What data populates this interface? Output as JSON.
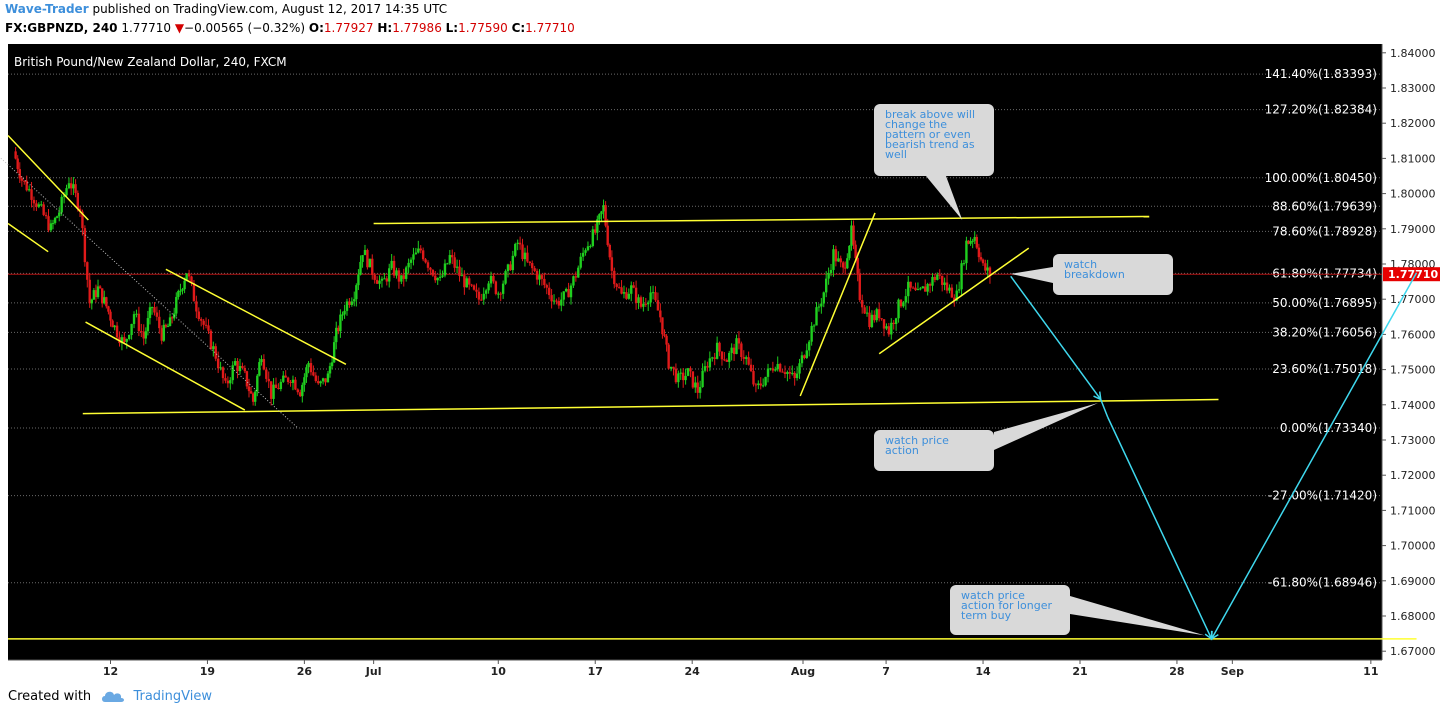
{
  "header": {
    "author": "Wave-Trader",
    "published_text": "published on TradingView.com, August 12, 2017 14:35 UTC",
    "symbol_line": "FX:GBPNZD, 240",
    "last_price": "1.77710",
    "change_arrow": "▼",
    "change": "−0.00565 (−0.32%)",
    "o_label": "O:",
    "o_value": "1.77927",
    "h_label": "H:",
    "h_value": "1.77986",
    "l_label": "L:",
    "l_value": "1.77590",
    "c_label": "C:",
    "c_value": "1.77710"
  },
  "footer": {
    "created_with": "Created with",
    "brand": "TradingView"
  },
  "colors": {
    "background": "#000000",
    "up_candle": "#1fcf1f",
    "down_candle": "#e01a1a",
    "trendline": "#ffff33",
    "projection": "#3fd8ee",
    "price_badge": "#e60000",
    "author": "#3d8fdb"
  },
  "chart_data": {
    "type": "candlestick",
    "title": "British Pound/New Zealand Dollar, 240, FXCM",
    "ylim": [
      1.6675,
      1.8425
    ],
    "yticks": [
      "1.84000",
      "1.83000",
      "1.82000",
      "1.81000",
      "1.80000",
      "1.79000",
      "1.78000",
      "1.77000",
      "1.76000",
      "1.75000",
      "1.74000",
      "1.73000",
      "1.72000",
      "1.71000",
      "1.70000",
      "1.69000",
      "1.68000",
      "1.67000"
    ],
    "xticks": [
      "12",
      "19",
      "26",
      "Jul",
      "10",
      "17",
      "24",
      "Aug",
      "7",
      "14",
      "21",
      "28",
      "Sep",
      "11"
    ],
    "xtick_days": [
      12,
      19,
      26,
      31,
      40,
      47,
      54,
      62,
      68,
      75,
      82,
      89,
      93,
      103
    ],
    "current_price": 1.7771,
    "current_price_label": "1.77710",
    "fib_levels": [
      {
        "label": "141.40%(1.83393)",
        "price": 1.83393
      },
      {
        "label": "127.20%(1.82384)",
        "price": 1.82384
      },
      {
        "label": "100.00%(1.80450)",
        "price": 1.8045
      },
      {
        "label": "88.60%(1.79639)",
        "price": 1.79639
      },
      {
        "label": "78.60%(1.78928)",
        "price": 1.78928
      },
      {
        "label": "61.80%(1.77734)",
        "price": 1.77734
      },
      {
        "label": "50.00%(1.76895)",
        "price": 1.76895
      },
      {
        "label": "38.20%(1.76056)",
        "price": 1.76056
      },
      {
        "label": "23.60%(1.75018)",
        "price": 1.75018
      },
      {
        "label": "0.00%(1.73340)",
        "price": 1.7334
      },
      {
        "label": "-27.00%(1.71420)",
        "price": 1.7142
      },
      {
        "label": "-61.80%(1.68946)",
        "price": 1.68946
      }
    ],
    "price_path": [
      [
        5.0,
        1.812
      ],
      [
        5.6,
        1.804
      ],
      [
        6.3,
        1.8
      ],
      [
        7.0,
        1.795
      ],
      [
        7.7,
        1.79
      ],
      [
        8.3,
        1.795
      ],
      [
        9.0,
        1.804
      ],
      [
        9.8,
        1.796
      ],
      [
        10.5,
        1.769
      ],
      [
        11.1,
        1.773
      ],
      [
        11.7,
        1.768
      ],
      [
        12.3,
        1.762
      ],
      [
        13.0,
        1.757
      ],
      [
        13.7,
        1.766
      ],
      [
        14.4,
        1.759
      ],
      [
        15.0,
        1.768
      ],
      [
        15.7,
        1.76
      ],
      [
        16.3,
        1.763
      ],
      [
        16.9,
        1.771
      ],
      [
        17.5,
        1.778
      ],
      [
        18.2,
        1.768
      ],
      [
        18.9,
        1.761
      ],
      [
        19.6,
        1.754
      ],
      [
        20.3,
        1.745
      ],
      [
        21.0,
        1.752
      ],
      [
        21.7,
        1.748
      ],
      [
        22.3,
        1.741
      ],
      [
        22.9,
        1.755
      ],
      [
        23.6,
        1.743
      ],
      [
        24.3,
        1.746
      ],
      [
        25.0,
        1.748
      ],
      [
        25.7,
        1.744
      ],
      [
        26.3,
        1.752
      ],
      [
        27.0,
        1.745
      ],
      [
        27.7,
        1.748
      ],
      [
        28.3,
        1.76
      ],
      [
        28.9,
        1.768
      ],
      [
        29.6,
        1.772
      ],
      [
        30.2,
        1.784
      ],
      [
        30.9,
        1.778
      ],
      [
        31.6,
        1.774
      ],
      [
        32.3,
        1.779
      ],
      [
        33.0,
        1.775
      ],
      [
        33.7,
        1.781
      ],
      [
        34.4,
        1.784
      ],
      [
        35.1,
        1.779
      ],
      [
        35.8,
        1.775
      ],
      [
        36.5,
        1.782
      ],
      [
        37.2,
        1.777
      ],
      [
        37.9,
        1.773
      ],
      [
        38.6,
        1.77
      ],
      [
        39.3,
        1.776
      ],
      [
        40.0,
        1.772
      ],
      [
        40.7,
        1.778
      ],
      [
        41.4,
        1.786
      ],
      [
        42.1,
        1.78
      ],
      [
        42.8,
        1.777
      ],
      [
        43.5,
        1.773
      ],
      [
        44.2,
        1.769
      ],
      [
        44.9,
        1.771
      ],
      [
        45.6,
        1.777
      ],
      [
        46.3,
        1.785
      ],
      [
        47.0,
        1.789
      ],
      [
        47.6,
        1.796
      ],
      [
        48.2,
        1.778
      ],
      [
        48.9,
        1.771
      ],
      [
        49.6,
        1.773
      ],
      [
        50.3,
        1.768
      ],
      [
        51.0,
        1.772
      ],
      [
        51.7,
        1.765
      ],
      [
        52.3,
        1.752
      ],
      [
        53.0,
        1.747
      ],
      [
        53.7,
        1.749
      ],
      [
        54.4,
        1.744
      ],
      [
        55.1,
        1.752
      ],
      [
        55.8,
        1.756
      ],
      [
        56.5,
        1.753
      ],
      [
        57.2,
        1.757
      ],
      [
        57.9,
        1.753
      ],
      [
        58.6,
        1.744
      ],
      [
        59.3,
        1.748
      ],
      [
        60.0,
        1.752
      ],
      [
        60.7,
        1.75
      ],
      [
        61.4,
        1.747
      ],
      [
        62.1,
        1.755
      ],
      [
        62.8,
        1.764
      ],
      [
        63.5,
        1.772
      ],
      [
        64.2,
        1.783
      ],
      [
        64.9,
        1.778
      ],
      [
        65.5,
        1.789
      ],
      [
        66.1,
        1.771
      ],
      [
        66.8,
        1.764
      ],
      [
        67.5,
        1.766
      ],
      [
        68.2,
        1.761
      ],
      [
        68.9,
        1.768
      ],
      [
        69.6,
        1.773
      ],
      [
        70.3,
        1.771
      ],
      [
        71.0,
        1.774
      ],
      [
        71.7,
        1.777
      ],
      [
        72.4,
        1.773
      ],
      [
        73.1,
        1.771
      ],
      [
        73.8,
        1.786
      ],
      [
        74.4,
        1.788
      ],
      [
        75.0,
        1.779
      ],
      [
        75.5,
        1.7771
      ]
    ],
    "trendlines": [
      {
        "name": "range-top",
        "from": [
          31.0,
          1.7915
        ],
        "to": [
          87.0,
          1.7935
        ]
      },
      {
        "name": "range-bottom",
        "from": [
          10.0,
          1.7375
        ],
        "to": [
          92.0,
          1.7415
        ]
      },
      {
        "name": "wedge-upper",
        "from": [
          4.6,
          1.8165
        ],
        "to": [
          10.4,
          1.7925
        ]
      },
      {
        "name": "wedge-lower-left",
        "from": [
          4.6,
          1.7915
        ],
        "to": [
          7.5,
          1.7835
        ]
      },
      {
        "name": "wedge-lower",
        "from": [
          10.2,
          1.7635
        ],
        "to": [
          21.7,
          1.7385
        ]
      },
      {
        "name": "flag-upper",
        "from": [
          16.0,
          1.7785
        ],
        "to": [
          29.0,
          1.7515
        ]
      },
      {
        "name": "sharp-rally",
        "from": [
          61.8,
          1.7425
        ],
        "to": [
          67.2,
          1.7945
        ]
      },
      {
        "name": "rising-support",
        "from": [
          67.5,
          1.7545
        ],
        "to": [
          78.3,
          1.7845
        ]
      },
      {
        "name": "top-gray-tangent",
        "flat": true,
        "from": [
          2.0,
          1.8175
        ],
        "to": [
          25.5,
          1.7335
        ]
      }
    ],
    "bottom_line": {
      "from": [
        4.6,
        1.6735
      ],
      "to": [
        106.3,
        1.6735
      ]
    },
    "projection": [
      [
        77.0,
        1.7765
      ],
      [
        83.5,
        1.7415
      ],
      [
        84.0,
        1.7365
      ],
      [
        91.5,
        1.6735
      ],
      [
        106.3,
        1.7775
      ]
    ],
    "annotations": [
      {
        "text": "break above will change the pattern or even bearish trend as well",
        "anchor": [
          73.5,
          1.7925
        ]
      },
      {
        "text": "watch breakdown",
        "anchor": [
          77.0,
          1.7772
        ]
      },
      {
        "text": "watch price action",
        "anchor": [
          83.3,
          1.7405
        ]
      },
      {
        "text": "watch price action for longer term buy",
        "anchor": [
          91.0,
          1.6745
        ]
      }
    ]
  }
}
